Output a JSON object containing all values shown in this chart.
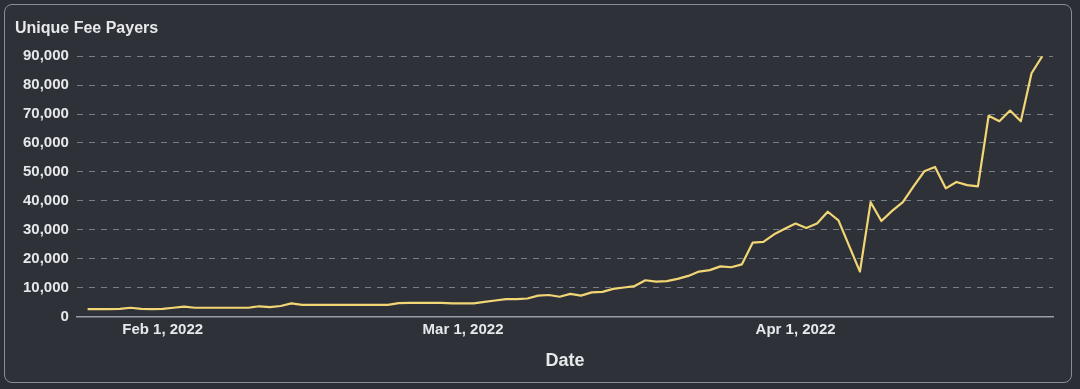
{
  "chart_data": {
    "type": "line",
    "title": "Unique Fee Payers",
    "xlabel": "Date",
    "x": [
      "2022-01-25",
      "2022-01-26",
      "2022-01-27",
      "2022-01-28",
      "2022-01-29",
      "2022-01-30",
      "2022-01-31",
      "2022-02-01",
      "2022-02-02",
      "2022-02-03",
      "2022-02-04",
      "2022-02-05",
      "2022-02-06",
      "2022-02-07",
      "2022-02-08",
      "2022-02-09",
      "2022-02-10",
      "2022-02-11",
      "2022-02-12",
      "2022-02-13",
      "2022-02-14",
      "2022-02-15",
      "2022-02-16",
      "2022-02-17",
      "2022-02-18",
      "2022-02-19",
      "2022-02-20",
      "2022-02-21",
      "2022-02-22",
      "2022-02-23",
      "2022-02-24",
      "2022-02-25",
      "2022-02-26",
      "2022-02-27",
      "2022-02-28",
      "2022-03-01",
      "2022-03-02",
      "2022-03-03",
      "2022-03-04",
      "2022-03-05",
      "2022-03-06",
      "2022-03-07",
      "2022-03-08",
      "2022-03-09",
      "2022-03-10",
      "2022-03-11",
      "2022-03-12",
      "2022-03-13",
      "2022-03-14",
      "2022-03-15",
      "2022-03-16",
      "2022-03-17",
      "2022-03-18",
      "2022-03-19",
      "2022-03-20",
      "2022-03-21",
      "2022-03-22",
      "2022-03-23",
      "2022-03-24",
      "2022-03-25",
      "2022-03-26",
      "2022-03-27",
      "2022-03-28",
      "2022-03-29",
      "2022-03-30",
      "2022-03-31",
      "2022-04-01",
      "2022-04-02",
      "2022-04-03",
      "2022-04-04",
      "2022-04-05",
      "2022-04-07",
      "2022-04-08",
      "2022-04-09",
      "2022-04-10",
      "2022-04-11",
      "2022-04-12",
      "2022-04-13",
      "2022-04-14",
      "2022-04-15",
      "2022-04-16",
      "2022-04-17",
      "2022-04-18",
      "2022-04-19",
      "2022-04-20",
      "2022-04-21",
      "2022-04-22",
      "2022-04-23",
      "2022-04-24"
    ],
    "series": [
      {
        "color": "#f2d675",
        "values": [
          2500,
          2500,
          2500,
          2600,
          3000,
          2600,
          2500,
          2600,
          3000,
          3400,
          3000,
          3000,
          3000,
          3000,
          3000,
          3000,
          3500,
          3200,
          3600,
          4500,
          4000,
          4000,
          4000,
          4000,
          4000,
          4000,
          4000,
          4000,
          4000,
          4600,
          4700,
          4700,
          4700,
          4700,
          4500,
          4500,
          4500,
          5000,
          5500,
          6000,
          6000,
          6200,
          7200,
          7400,
          6800,
          7800,
          7200,
          8300,
          8500,
          9500,
          10000,
          10500,
          12500,
          12000,
          12200,
          13000,
          14000,
          15500,
          16000,
          17300,
          17000,
          18000,
          25500,
          25800,
          28400,
          30300,
          32100,
          30600,
          32100,
          36200,
          33200,
          15500,
          39500,
          33000,
          36500,
          39500,
          45000,
          50200,
          51700,
          44300,
          46500,
          45400,
          45000,
          69400,
          67500,
          71200,
          67500,
          84100,
          90000
        ]
      }
    ],
    "xlim": [
      "2022-01-24",
      "2022-04-25"
    ],
    "xticks": [
      {
        "value": "2022-02-01",
        "label": "Feb 1, 2022"
      },
      {
        "value": "2022-03-01",
        "label": "Mar 1, 2022"
      },
      {
        "value": "2022-04-01",
        "label": "Apr 1, 2022"
      }
    ],
    "ylim": [
      0,
      90000
    ],
    "yticks": [
      0,
      {
        "value": 10000,
        "label": "10,000"
      },
      {
        "value": 20000,
        "label": "20,000"
      },
      {
        "value": 30000,
        "label": "30,000"
      },
      {
        "value": 40000,
        "label": "40,000"
      },
      {
        "value": 50000,
        "label": "50,000"
      },
      {
        "value": 60000,
        "label": "60,000"
      },
      {
        "value": 70000,
        "label": "70,000"
      },
      {
        "value": 80000,
        "label": "80,000"
      },
      {
        "value": 90000,
        "label": "90,000"
      }
    ],
    "grid": "y",
    "marker": "none",
    "line_style": "solid"
  }
}
